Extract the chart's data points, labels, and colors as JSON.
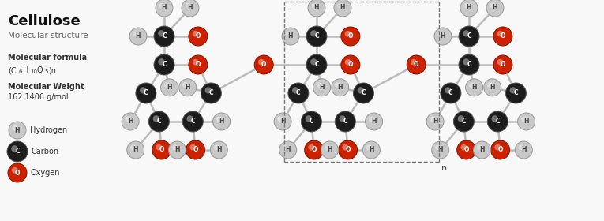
{
  "title": "Cellulose",
  "subtitle": "Molecular structure",
  "formula_label": "Molecular formula",
  "formula_line1": "(C",
  "formula_sub1": "6",
  "formula_mid": "H",
  "formula_sub2": "10",
  "formula_mid2": "O",
  "formula_sub3": "5",
  "formula_end": ")n",
  "weight_label": "Molecular Weight",
  "weight": "162.1406 g/mol",
  "bg_color": "#f8f8f8",
  "bond_color": "#bbbbbb",
  "bond_lw": 1.8,
  "H_color": "#c8c8c8",
  "C_color": "#1c1c1c",
  "O_color": "#cc2200",
  "H_edge": "#999999",
  "C_edge": "#555555",
  "O_edge": "#881100",
  "rH": 11,
  "rC": 13,
  "rO": 12,
  "text_color": "#333333",
  "title_color": "#111111",
  "n_label": "n",
  "fig_w": 7.65,
  "fig_h": 2.8,
  "dpi": 100
}
